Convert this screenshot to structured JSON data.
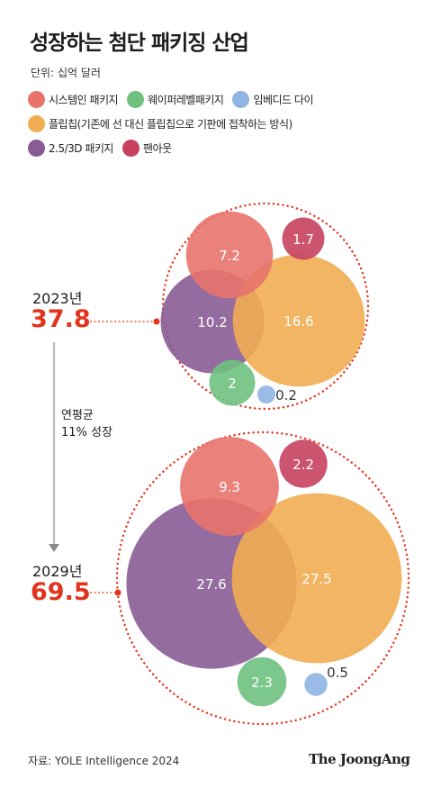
{
  "title": "성장하는 첨단 패키징 산업",
  "unit": "단위: 십억 달러",
  "colors": {
    "system": "#e8736b",
    "wafer": "#6ec17e",
    "embedded": "#8fb4e3",
    "flipchip": "#f0ad52",
    "pkg25d3d": "#8a5c96",
    "fanout": "#c7415f",
    "accent": "#e2341c"
  },
  "legend": [
    {
      "key": "system",
      "label": "시스템인 패키지",
      "color": "#e8736b"
    },
    {
      "key": "wafer",
      "label": "웨이퍼레벨패키지",
      "color": "#6ec17e"
    },
    {
      "key": "embedded",
      "label": "임베디드 다이",
      "color": "#8fb4e3"
    },
    {
      "key": "flipchip",
      "label": "플립칩(기존에 선 대신 플립칩으로 기판에 접착하는 방식)",
      "color": "#f0ad52"
    },
    {
      "key": "pkg25d3d",
      "label": "2.5/3D 패키지",
      "color": "#8a5c96"
    },
    {
      "key": "fanout",
      "label": "팬아웃",
      "color": "#c7415f"
    }
  ],
  "chart_data": {
    "type": "bubble",
    "unit": "십억 달러",
    "categories": [
      "시스템인 패키지",
      "웨이퍼레벨패키지",
      "임베디드 다이",
      "플립칩",
      "2.5/3D 패키지",
      "팬아웃"
    ],
    "groups": [
      {
        "year_label": "2023년",
        "total": "37.8",
        "values": [
          {
            "key": "system",
            "value": 7.2,
            "label": "7.2"
          },
          {
            "key": "wafer",
            "value": 2,
            "label": "2"
          },
          {
            "key": "embedded",
            "value": 0.2,
            "label": "0.2"
          },
          {
            "key": "flipchip",
            "value": 16.6,
            "label": "16.6"
          },
          {
            "key": "pkg25d3d",
            "value": 10.2,
            "label": "10.2"
          },
          {
            "key": "fanout",
            "value": 1.7,
            "label": "1.7"
          }
        ]
      },
      {
        "year_label": "2029년",
        "total": "69.5",
        "values": [
          {
            "key": "system",
            "value": 9.3,
            "label": "9.3"
          },
          {
            "key": "wafer",
            "value": 2.3,
            "label": "2.3"
          },
          {
            "key": "embedded",
            "value": 0.5,
            "label": "0.5"
          },
          {
            "key": "flipchip",
            "value": 27.5,
            "label": "27.5"
          },
          {
            "key": "pkg25d3d",
            "value": 27.6,
            "label": "27.6"
          },
          {
            "key": "fanout",
            "value": 2.2,
            "label": "2.2"
          }
        ]
      }
    ],
    "growth_note": [
      "연평균",
      "11% 성장"
    ]
  },
  "source": "자료: YOLE Intelligence 2024",
  "brand": "The JoongAng"
}
